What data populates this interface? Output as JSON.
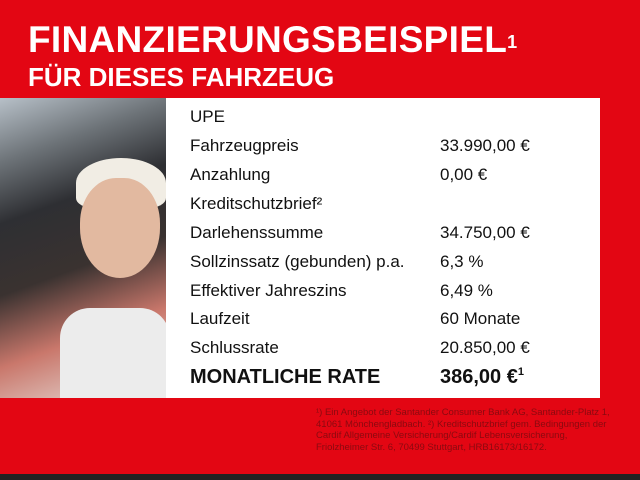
{
  "header": {
    "title": "FINANZIERUNGSBEISPIEL",
    "title_sup": "1",
    "subtitle": "FÜR DIESES FAHRZEUG"
  },
  "table": {
    "rows": [
      {
        "label": "UPE",
        "value": ""
      },
      {
        "label": "Fahrzeugpreis",
        "value": "33.990,00 €"
      },
      {
        "label": "Anzahlung",
        "value": "0,00 €"
      },
      {
        "label": "Kreditschutzbrief²",
        "value": ""
      },
      {
        "label": "Darlehenssumme",
        "value": "34.750,00 €"
      },
      {
        "label": "Sollzinssatz (gebunden) p.a.",
        "value": "6,3 %"
      },
      {
        "label": "Effektiver Jahreszins",
        "value": "6,49 %"
      },
      {
        "label": "Laufzeit",
        "value": "60 Monate"
      },
      {
        "label": "Schlussrate",
        "value": "20.850,00 €"
      }
    ],
    "total": {
      "label": "MONATLICHE RATE",
      "value": "386,00 €",
      "sup": "1"
    }
  },
  "footnote": "¹) Ein Angebot der Santander Consumer Bank AG, Santander-Platz 1, 41061 Mönchengladbach. ²) Kreditschutzbrief gem. Bedingungen der Cardif Allgemeine Versicherung/Cardif Lebensversicherung, Friolzheimer Str. 6, 70499 Stuttgart, HRB16173/16172.",
  "colors": {
    "background": "#e30613",
    "panel": "#ffffff",
    "text": "#111111"
  }
}
